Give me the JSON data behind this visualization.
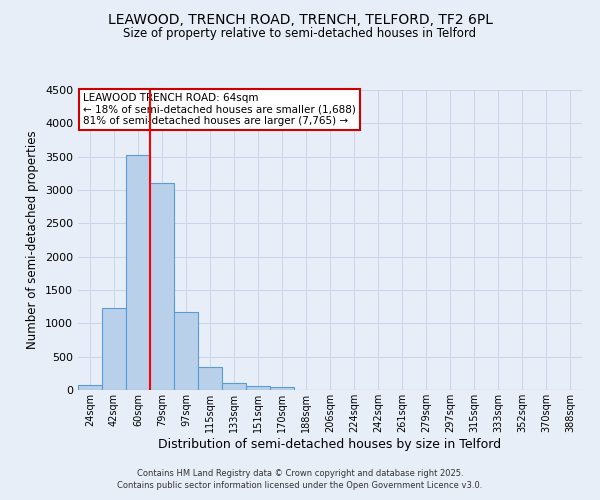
{
  "title1": "LEAWOOD, TRENCH ROAD, TRENCH, TELFORD, TF2 6PL",
  "title2": "Size of property relative to semi-detached houses in Telford",
  "xlabel": "Distribution of semi-detached houses by size in Telford",
  "ylabel": "Number of semi-detached properties",
  "categories": [
    "24sqm",
    "42sqm",
    "60sqm",
    "79sqm",
    "97sqm",
    "115sqm",
    "133sqm",
    "151sqm",
    "170sqm",
    "188sqm",
    "206sqm",
    "224sqm",
    "242sqm",
    "261sqm",
    "279sqm",
    "297sqm",
    "315sqm",
    "333sqm",
    "352sqm",
    "370sqm",
    "388sqm"
  ],
  "values": [
    80,
    1230,
    3520,
    3100,
    1165,
    350,
    105,
    55,
    50,
    0,
    0,
    0,
    0,
    0,
    0,
    0,
    0,
    0,
    0,
    0,
    0
  ],
  "bar_color": "#b8d0ea",
  "bar_edge_color": "#5b9bd5",
  "bar_linewidth": 0.8,
  "grid_color": "#c8d4e8",
  "background_color": "#e8eef8",
  "plot_bg_color": "#e8eef8",
  "red_line_x": 2.5,
  "annotation_title": "LEAWOOD TRENCH ROAD: 64sqm",
  "annotation_line1": "← 18% of semi-detached houses are smaller (1,688)",
  "annotation_line2": "81% of semi-detached houses are larger (7,765) →",
  "annotation_box_facecolor": "#ffffff",
  "annotation_box_edgecolor": "#cc0000",
  "footer_line1": "Contains HM Land Registry data © Crown copyright and database right 2025.",
  "footer_line2": "Contains public sector information licensed under the Open Government Licence v3.0.",
  "ylim": [
    0,
    4500
  ],
  "yticks": [
    0,
    500,
    1000,
    1500,
    2000,
    2500,
    3000,
    3500,
    4000,
    4500
  ]
}
